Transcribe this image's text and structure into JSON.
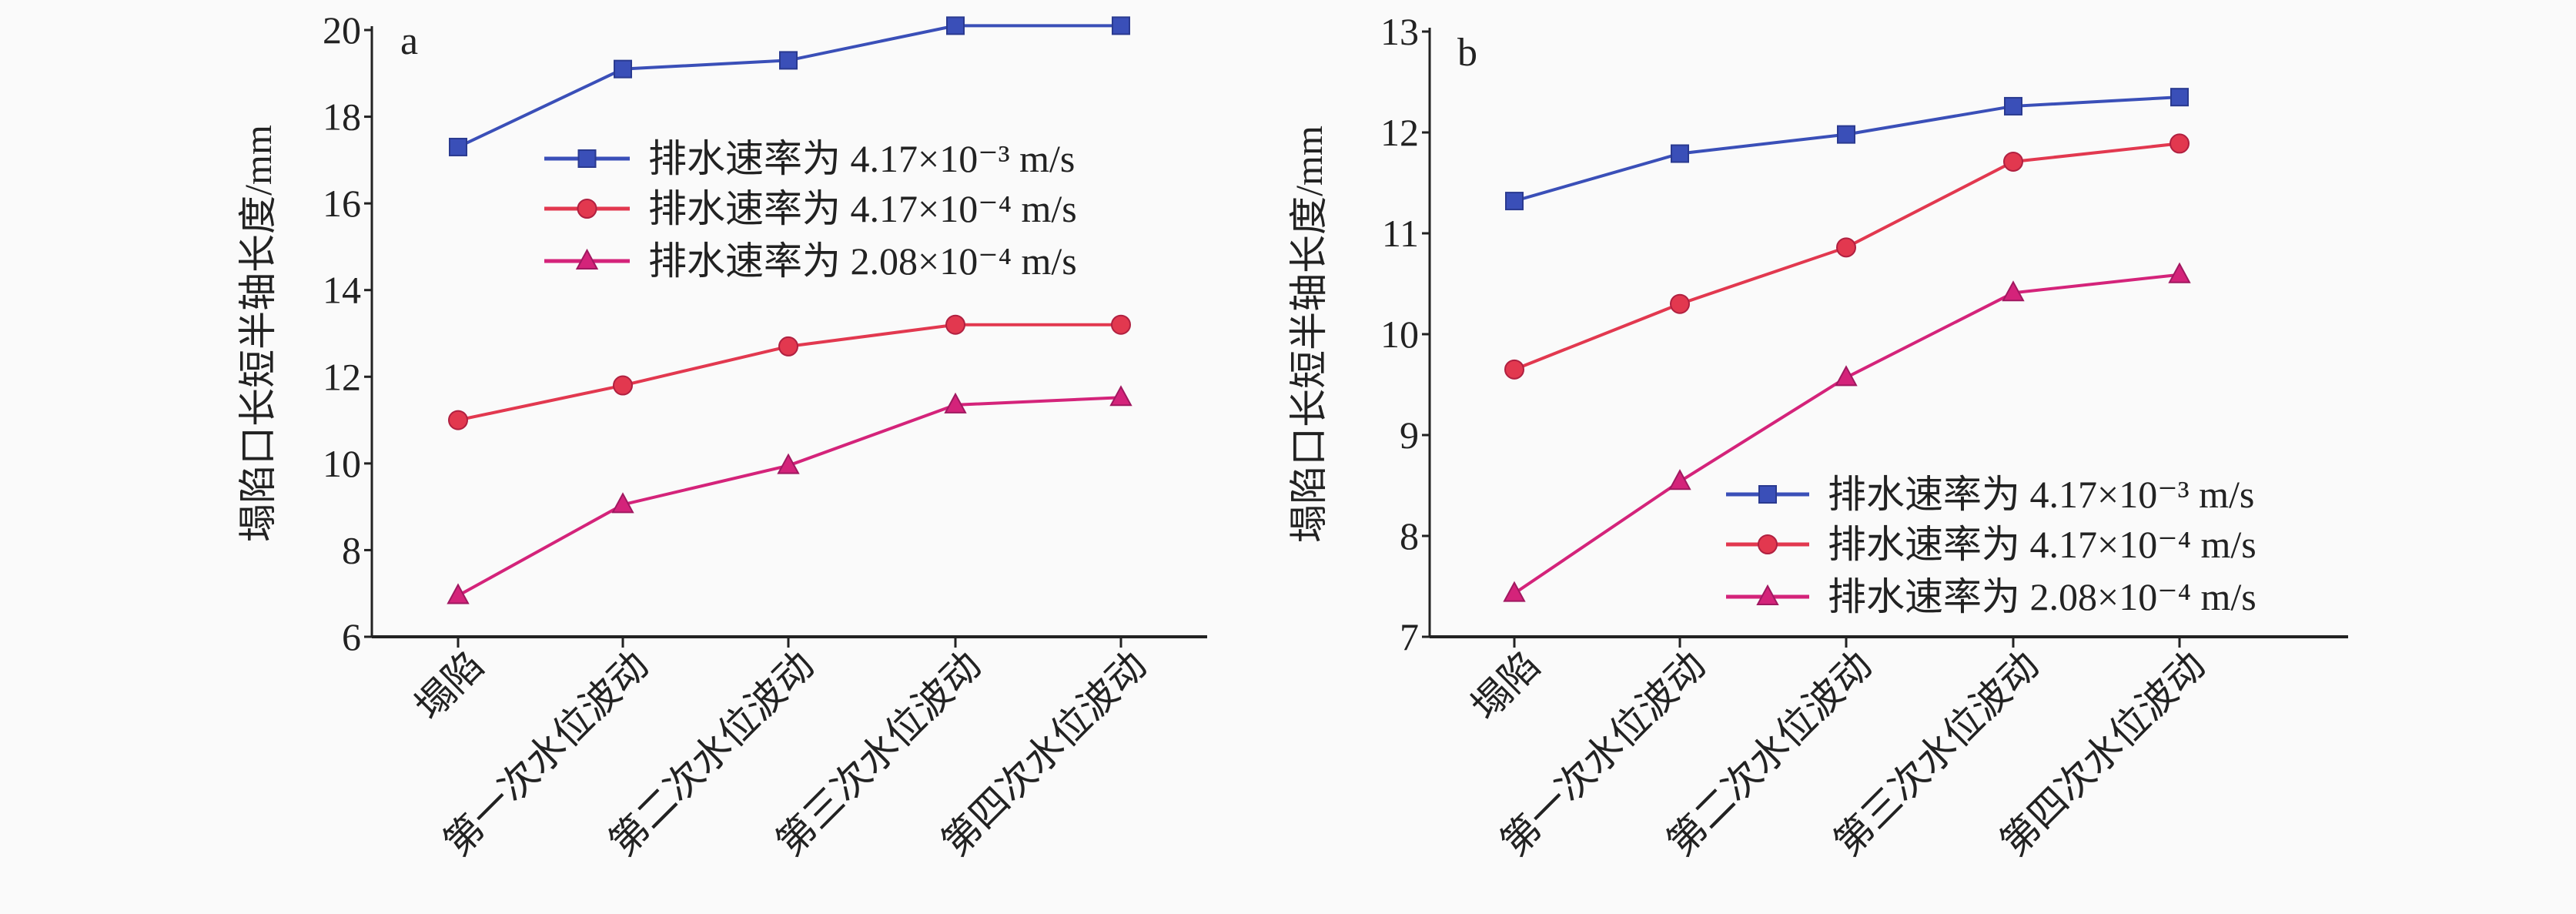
{
  "chart_data": [
    {
      "type": "line",
      "panel_label": "a",
      "ylabel": "塌陷口长短半轴长度/mm",
      "xlabel": "",
      "categories": [
        "塌陷",
        "第一次水位波动",
        "第二次水位波动",
        "第三次水位波动",
        "第四次水位波动"
      ],
      "ylim": [
        6,
        20
      ],
      "yticks": [
        "6",
        "8",
        "10",
        "12",
        "14",
        "16",
        "18",
        "20"
      ],
      "grid": false,
      "legend_position": "upper-right",
      "series": [
        {
          "name": "排水速率为 4.17×10⁻³ m/s",
          "marker": "square",
          "color": "#3a4fb8",
          "values": [
            17.3,
            19.1,
            19.3,
            20.1,
            20.1
          ]
        },
        {
          "name": "排水速率为 4.17×10⁻⁴ m/s",
          "marker": "circle",
          "color": "#e2384f",
          "values": [
            11.0,
            11.8,
            12.7,
            13.2,
            13.2
          ]
        },
        {
          "name": "排水速率为 2.08×10⁻⁴ m/s",
          "marker": "triangle",
          "color": "#d4237a",
          "values": [
            6.95,
            9.05,
            9.95,
            11.35,
            11.52
          ]
        }
      ]
    },
    {
      "type": "line",
      "panel_label": "b",
      "ylabel": "塌陷口长短半轴长度/mm",
      "xlabel": "",
      "categories": [
        "塌陷",
        "第一次水位波动",
        "第二次水位波动",
        "第三次水位波动",
        "第四次水位波动"
      ],
      "ylim": [
        7,
        13
      ],
      "yticks": [
        "7",
        "8",
        "9",
        "10",
        "11",
        "12",
        "13"
      ],
      "grid": false,
      "legend_position": "lower-right",
      "series": [
        {
          "name": "排水速率为 4.17×10⁻³ m/s",
          "marker": "square",
          "color": "#3a4fb8",
          "values": [
            11.32,
            11.79,
            11.98,
            12.26,
            12.35
          ]
        },
        {
          "name": "排水速率为 4.17×10⁻⁴ m/s",
          "marker": "circle",
          "color": "#e2384f",
          "values": [
            9.65,
            10.3,
            10.86,
            11.71,
            11.89
          ]
        },
        {
          "name": "排水速率为 2.08×10⁻⁴ m/s",
          "marker": "triangle",
          "color": "#d4237a",
          "values": [
            7.43,
            8.54,
            9.57,
            10.41,
            10.59
          ]
        }
      ]
    }
  ]
}
